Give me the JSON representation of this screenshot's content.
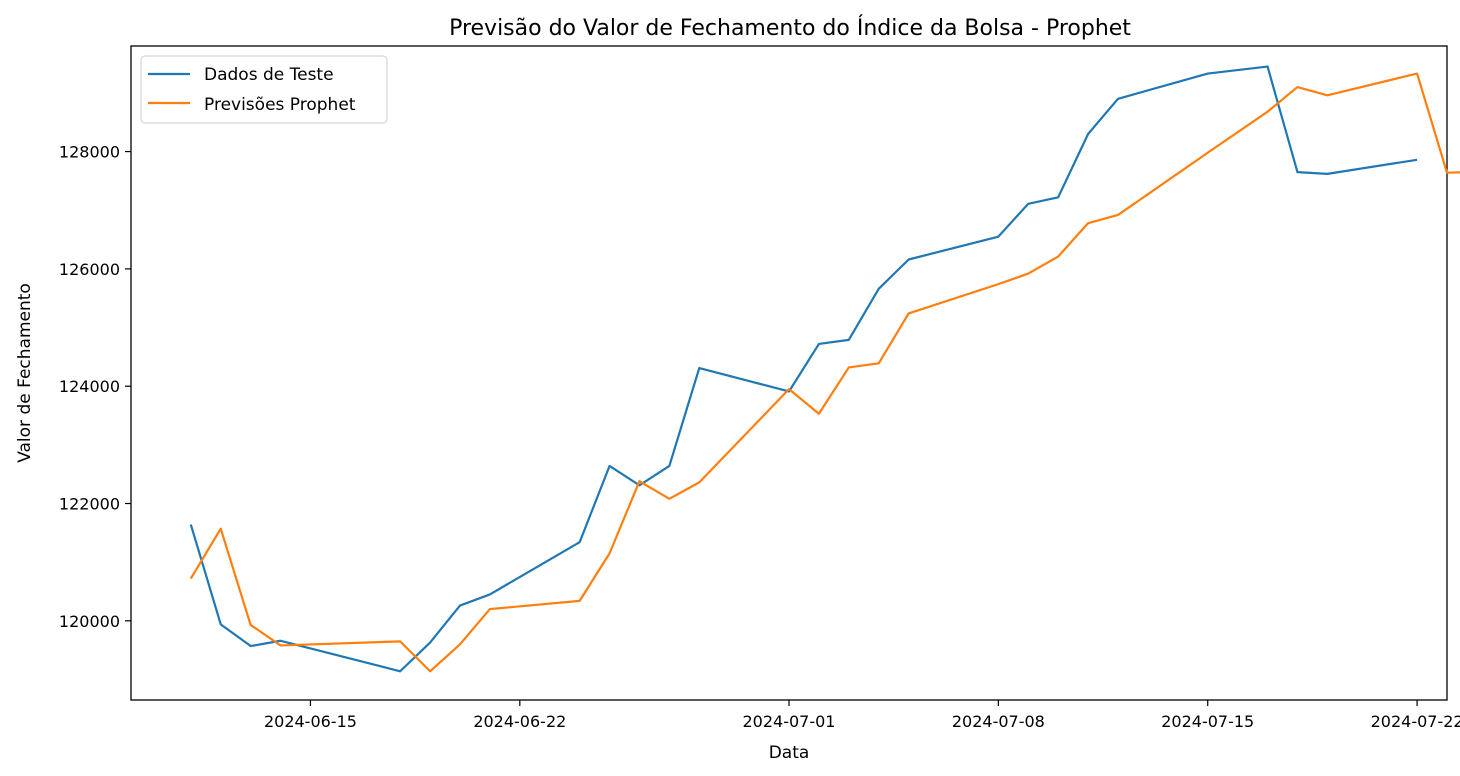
{
  "chart_data": {
    "type": "line",
    "title": "Previsão do Valor de Fechamento do Índice da Bolsa - Prophet",
    "xlabel": "Data",
    "ylabel": "Valor de Fechamento",
    "xlim": [
      "2024-06-09",
      "2024-07-23"
    ],
    "ylim": [
      118650,
      129800
    ],
    "x_ticks": [
      "2024-06-15",
      "2024-06-22",
      "2024-07-01",
      "2024-07-08",
      "2024-07-15",
      "2024-07-22"
    ],
    "y_ticks": [
      120000,
      122000,
      124000,
      126000,
      128000
    ],
    "y_tick_labels": [
      "120000",
      "122000",
      "124000",
      "126000",
      "128000"
    ],
    "grid": false,
    "legend_position": "top-left",
    "series": [
      {
        "name": "Dados de Teste",
        "color": "#1f77b4",
        "points": [
          [
            "2024-06-11",
            121640
          ],
          [
            "2024-06-12",
            119940
          ],
          [
            "2024-06-13",
            119570
          ],
          [
            "2024-06-14",
            119660
          ],
          [
            "2024-06-18",
            119140
          ],
          [
            "2024-06-19",
            119630
          ],
          [
            "2024-06-20",
            120260
          ],
          [
            "2024-06-21",
            120450
          ],
          [
            "2024-06-24",
            121340
          ],
          [
            "2024-06-25",
            122640
          ],
          [
            "2024-06-26",
            122310
          ],
          [
            "2024-06-27",
            122640
          ],
          [
            "2024-06-28",
            124310
          ],
          [
            "2024-07-01",
            123910
          ],
          [
            "2024-07-02",
            124720
          ],
          [
            "2024-07-03",
            124790
          ],
          [
            "2024-07-04",
            125660
          ],
          [
            "2024-07-05",
            126160
          ],
          [
            "2024-07-08",
            126550
          ],
          [
            "2024-07-09",
            127110
          ],
          [
            "2024-07-10",
            127220
          ],
          [
            "2024-07-11",
            128300
          ],
          [
            "2024-07-12",
            128900
          ],
          [
            "2024-07-15",
            129330
          ],
          [
            "2024-07-17",
            129450
          ],
          [
            "2024-07-18",
            127650
          ],
          [
            "2024-07-19",
            127620
          ],
          [
            "2024-07-22",
            127860
          ]
        ]
      },
      {
        "name": "Previsões Prophet",
        "color": "#ff7f0e",
        "points": [
          [
            "2024-06-11",
            120720
          ],
          [
            "2024-06-12",
            121570
          ],
          [
            "2024-06-13",
            119930
          ],
          [
            "2024-06-14",
            119580
          ],
          [
            "2024-06-18",
            119650
          ],
          [
            "2024-06-19",
            119140
          ],
          [
            "2024-06-20",
            119600
          ],
          [
            "2024-06-21",
            120200
          ],
          [
            "2024-06-24",
            120340
          ],
          [
            "2024-06-25",
            121150
          ],
          [
            "2024-06-26",
            122380
          ],
          [
            "2024-06-27",
            122080
          ],
          [
            "2024-06-28",
            122360
          ],
          [
            "2024-07-01",
            123950
          ],
          [
            "2024-07-02",
            123530
          ],
          [
            "2024-07-03",
            124320
          ],
          [
            "2024-07-04",
            124390
          ],
          [
            "2024-07-05",
            125240
          ],
          [
            "2024-07-08",
            125740
          ],
          [
            "2024-07-09",
            125920
          ],
          [
            "2024-07-10",
            126210
          ],
          [
            "2024-07-11",
            126780
          ],
          [
            "2024-07-12",
            126920
          ],
          [
            "2024-07-15",
            127980
          ],
          [
            "2024-07-17",
            128680
          ],
          [
            "2024-07-18",
            129100
          ],
          [
            "2024-07-19",
            128960
          ],
          [
            "2024-07-22",
            129330
          ],
          [
            "2024-07-23",
            127640
          ],
          [
            "2024-07-26",
            127680
          ]
        ]
      }
    ]
  }
}
